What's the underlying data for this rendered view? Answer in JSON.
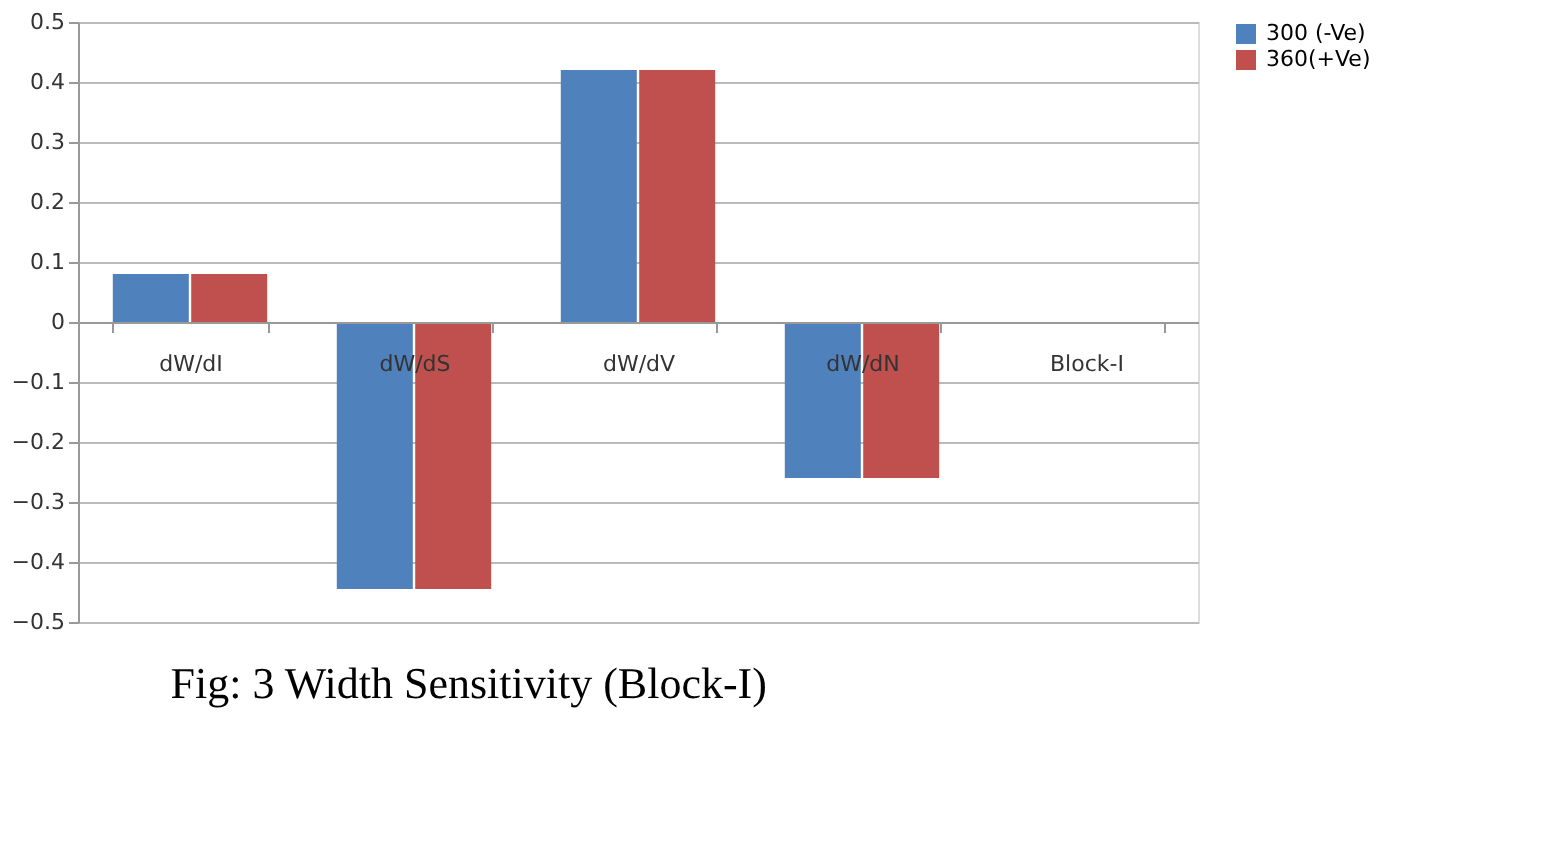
{
  "chart_data": {
    "type": "bar",
    "title": "Fig: 3 Width Sensitivity (Block-I)",
    "categories": [
      "dW/dI",
      "dW/dS",
      "dW/dV",
      "dW/dN",
      "Block-I"
    ],
    "series": [
      {
        "name": "300 (-Ve)",
        "color": "#4f81bd",
        "values": [
          0.08,
          -0.445,
          0.42,
          -0.26,
          null
        ]
      },
      {
        "name": "360(+Ve)",
        "color": "#c0504d",
        "values": [
          0.08,
          -0.445,
          0.42,
          -0.26,
          null
        ]
      }
    ],
    "ylim": [
      -0.5,
      0.5
    ],
    "yticks": [
      -0.5,
      -0.4,
      -0.3,
      -0.2,
      -0.1,
      0,
      0.1,
      0.2,
      0.3,
      0.4,
      0.5
    ],
    "grid": "y",
    "legend": "right"
  }
}
